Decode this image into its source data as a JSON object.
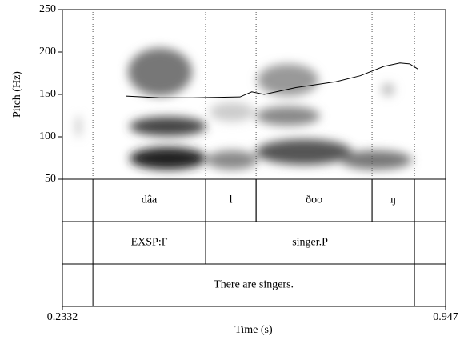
{
  "chart_data": {
    "type": "line",
    "x_label": "Time (s)",
    "y_label": "Pitch (Hz)",
    "xlim": [
      0.2332,
      0.947
    ],
    "xticks": [
      0.2332,
      0.947
    ],
    "ylim": [
      50,
      250
    ],
    "yticks": [
      50,
      100,
      150,
      200,
      250
    ],
    "series": [
      {
        "color": "#000000",
        "x": [
          0.352,
          0.415,
          0.475,
          0.564,
          0.586,
          0.609,
          0.668,
          0.743,
          0.788,
          0.832,
          0.862,
          0.88,
          0.895
        ],
        "values": [
          148,
          146,
          146,
          147,
          153,
          150,
          158,
          165,
          172,
          183,
          187,
          186,
          180
        ]
      }
    ],
    "tiers": [
      {
        "intervals": [
          {
            "label": "dâa",
            "start": 0.29,
            "end": 0.5
          },
          {
            "label": "l",
            "start": 0.5,
            "end": 0.594
          },
          {
            "label": "ðoo",
            "start": 0.594,
            "end": 0.81
          },
          {
            "label": "ŋ",
            "start": 0.81,
            "end": 0.889
          }
        ]
      },
      {
        "intervals": [
          {
            "label": "EXSP:F",
            "start": 0.29,
            "end": 0.5
          },
          {
            "label": "singer.P",
            "start": 0.5,
            "end": 0.889
          }
        ]
      },
      {
        "intervals": [
          {
            "label": "There are singers.",
            "start": 0.29,
            "end": 0.889
          }
        ]
      }
    ]
  }
}
